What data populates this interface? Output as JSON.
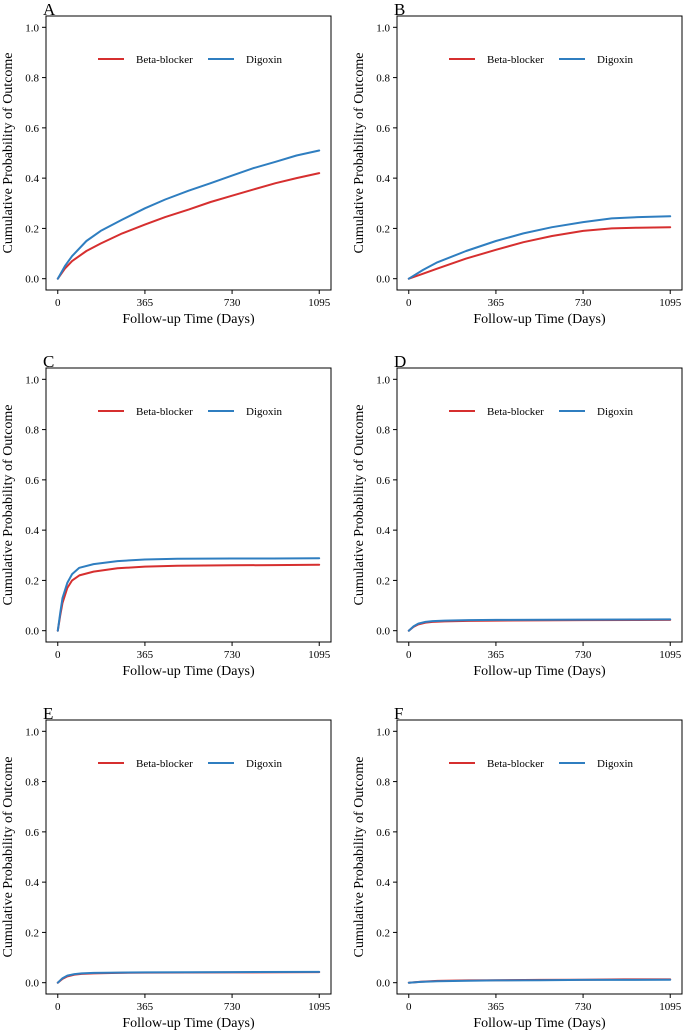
{
  "colors": {
    "beta_blocker": "#d62f2f",
    "digoxin": "#2f7ec0",
    "axis": "#000000"
  },
  "chart_data": [
    {
      "panel": "A",
      "type": "line",
      "xlabel": "Follow-up Time (Days)",
      "ylabel": "Cumulative Probability of Outcome",
      "xlim": [
        0,
        1095
      ],
      "ylim": [
        0,
        1.0
      ],
      "xticks": [
        0,
        365,
        730,
        1095
      ],
      "xtick_labels": [
        "0",
        "365",
        "730",
        "1095"
      ],
      "yticks": [
        0,
        0.2,
        0.4,
        0.6,
        0.8,
        1.0
      ],
      "ytick_labels": [
        "0.0",
        "0.2",
        "0.4",
        "0.6",
        "0.8",
        "1.0"
      ],
      "legend": [
        "Beta-blocker",
        "Digoxin"
      ],
      "legend_position": "top-center",
      "grid": false,
      "series": [
        {
          "name": "Beta-blocker",
          "x": [
            0,
            30,
            60,
            120,
            180,
            270,
            365,
            450,
            548,
            640,
            730,
            820,
            912,
            1000,
            1095
          ],
          "y": [
            0,
            0.04,
            0.07,
            0.11,
            0.14,
            0.18,
            0.215,
            0.245,
            0.275,
            0.305,
            0.33,
            0.355,
            0.38,
            0.4,
            0.42
          ]
        },
        {
          "name": "Digoxin",
          "x": [
            0,
            30,
            60,
            120,
            180,
            270,
            365,
            450,
            548,
            640,
            730,
            820,
            912,
            1000,
            1095
          ],
          "y": [
            0,
            0.05,
            0.09,
            0.15,
            0.19,
            0.235,
            0.28,
            0.315,
            0.35,
            0.38,
            0.41,
            0.44,
            0.465,
            0.49,
            0.51
          ]
        }
      ]
    },
    {
      "panel": "B",
      "type": "line",
      "xlabel": "Follow-up Time (Days)",
      "ylabel": "Cumulative Probability of Outcome",
      "xlim": [
        0,
        1095
      ],
      "ylim": [
        0,
        1.0
      ],
      "xticks": [
        0,
        365,
        730,
        1095
      ],
      "xtick_labels": [
        "0",
        "365",
        "730",
        "1095"
      ],
      "yticks": [
        0,
        0.2,
        0.4,
        0.6,
        0.8,
        1.0
      ],
      "ytick_labels": [
        "0.0",
        "0.2",
        "0.4",
        "0.6",
        "0.8",
        "1.0"
      ],
      "legend": [
        "Beta-blocker",
        "Digoxin"
      ],
      "legend_position": "top-center",
      "grid": false,
      "series": [
        {
          "name": "Beta-blocker",
          "x": [
            0,
            60,
            120,
            240,
            365,
            480,
            600,
            730,
            850,
            960,
            1095
          ],
          "y": [
            0,
            0.02,
            0.04,
            0.08,
            0.115,
            0.145,
            0.17,
            0.19,
            0.2,
            0.203,
            0.205
          ]
        },
        {
          "name": "Digoxin",
          "x": [
            0,
            60,
            120,
            240,
            365,
            480,
            600,
            730,
            850,
            960,
            1095
          ],
          "y": [
            0,
            0.035,
            0.065,
            0.11,
            0.15,
            0.18,
            0.205,
            0.225,
            0.24,
            0.245,
            0.248
          ]
        }
      ]
    },
    {
      "panel": "C",
      "type": "line",
      "xlabel": "Follow-up Time (Days)",
      "ylabel": "Cumulative Probability of Outcome",
      "xlim": [
        0,
        1095
      ],
      "ylim": [
        0,
        1.0
      ],
      "xticks": [
        0,
        365,
        730,
        1095
      ],
      "xtick_labels": [
        "0",
        "365",
        "730",
        "1095"
      ],
      "yticks": [
        0,
        0.2,
        0.4,
        0.6,
        0.8,
        1.0
      ],
      "ytick_labels": [
        "0.0",
        "0.2",
        "0.4",
        "0.6",
        "0.8",
        "1.0"
      ],
      "legend": [
        "Beta-blocker",
        "Digoxin"
      ],
      "legend_position": "top-center",
      "grid": false,
      "series": [
        {
          "name": "Beta-blocker",
          "x": [
            0,
            10,
            20,
            40,
            60,
            90,
            150,
            250,
            365,
            500,
            730,
            900,
            1095
          ],
          "y": [
            0,
            0.06,
            0.11,
            0.17,
            0.2,
            0.22,
            0.235,
            0.248,
            0.255,
            0.258,
            0.26,
            0.261,
            0.262
          ]
        },
        {
          "name": "Digoxin",
          "x": [
            0,
            10,
            20,
            40,
            60,
            90,
            150,
            250,
            365,
            500,
            730,
            900,
            1095
          ],
          "y": [
            0,
            0.07,
            0.13,
            0.19,
            0.225,
            0.25,
            0.265,
            0.277,
            0.283,
            0.286,
            0.287,
            0.287,
            0.288
          ]
        }
      ]
    },
    {
      "panel": "D",
      "type": "line",
      "xlabel": "Follow-up Time (Days)",
      "ylabel": "Cumulative Probability of Outcome",
      "xlim": [
        0,
        1095
      ],
      "ylim": [
        0,
        1.0
      ],
      "xticks": [
        0,
        365,
        730,
        1095
      ],
      "xtick_labels": [
        "0",
        "365",
        "730",
        "1095"
      ],
      "yticks": [
        0,
        0.2,
        0.4,
        0.6,
        0.8,
        1.0
      ],
      "ytick_labels": [
        "0.0",
        "0.2",
        "0.4",
        "0.6",
        "0.8",
        "1.0"
      ],
      "legend": [
        "Beta-blocker",
        "Digoxin"
      ],
      "legend_position": "top-center",
      "grid": false,
      "series": [
        {
          "name": "Beta-blocker",
          "x": [
            0,
            20,
            40,
            70,
            100,
            150,
            250,
            365,
            730,
            1095
          ],
          "y": [
            0,
            0.015,
            0.025,
            0.032,
            0.035,
            0.037,
            0.039,
            0.04,
            0.042,
            0.043
          ]
        },
        {
          "name": "Digoxin",
          "x": [
            0,
            20,
            40,
            70,
            100,
            150,
            250,
            365,
            730,
            1095
          ],
          "y": [
            0,
            0.017,
            0.028,
            0.035,
            0.038,
            0.04,
            0.042,
            0.043,
            0.044,
            0.045
          ]
        }
      ]
    },
    {
      "panel": "E",
      "type": "line",
      "xlabel": "Follow-up Time (Days)",
      "ylabel": "Cumulative Probability of Outcome",
      "xlim": [
        0,
        1095
      ],
      "ylim": [
        0,
        1.0
      ],
      "xticks": [
        0,
        365,
        730,
        1095
      ],
      "xtick_labels": [
        "0",
        "365",
        "730",
        "1095"
      ],
      "yticks": [
        0,
        0.2,
        0.4,
        0.6,
        0.8,
        1.0
      ],
      "ytick_labels": [
        "0.0",
        "0.2",
        "0.4",
        "0.6",
        "0.8",
        "1.0"
      ],
      "legend": [
        "Beta-blocker",
        "Digoxin"
      ],
      "legend_position": "top-center",
      "grid": false,
      "series": [
        {
          "name": "Beta-blocker",
          "x": [
            0,
            20,
            40,
            70,
            100,
            150,
            250,
            365,
            730,
            1095
          ],
          "y": [
            0,
            0.015,
            0.025,
            0.032,
            0.035,
            0.037,
            0.039,
            0.04,
            0.041,
            0.042
          ]
        },
        {
          "name": "Digoxin",
          "x": [
            0,
            20,
            40,
            70,
            100,
            150,
            250,
            365,
            730,
            1095
          ],
          "y": [
            0,
            0.018,
            0.028,
            0.034,
            0.037,
            0.039,
            0.04,
            0.041,
            0.042,
            0.043
          ]
        }
      ]
    },
    {
      "panel": "F",
      "type": "line",
      "xlabel": "Follow-up Time (Days)",
      "ylabel": "Cumulative Probability of Outcome",
      "xlim": [
        0,
        1095
      ],
      "ylim": [
        0,
        1.0
      ],
      "xticks": [
        0,
        365,
        730,
        1095
      ],
      "xtick_labels": [
        "0",
        "365",
        "730",
        "1095"
      ],
      "yticks": [
        0,
        0.2,
        0.4,
        0.6,
        0.8,
        1.0
      ],
      "ytick_labels": [
        "0.0",
        "0.2",
        "0.4",
        "0.6",
        "0.8",
        "1.0"
      ],
      "legend": [
        "Beta-blocker",
        "Digoxin"
      ],
      "legend_position": "top-center",
      "grid": false,
      "series": [
        {
          "name": "Beta-blocker",
          "x": [
            0,
            50,
            120,
            250,
            365,
            550,
            730,
            900,
            1095
          ],
          "y": [
            0,
            0.004,
            0.007,
            0.009,
            0.01,
            0.011,
            0.012,
            0.013,
            0.013
          ]
        },
        {
          "name": "Digoxin",
          "x": [
            0,
            50,
            120,
            250,
            365,
            550,
            730,
            900,
            1095
          ],
          "y": [
            0,
            0.003,
            0.006,
            0.008,
            0.009,
            0.01,
            0.011,
            0.011,
            0.012
          ]
        }
      ]
    }
  ]
}
